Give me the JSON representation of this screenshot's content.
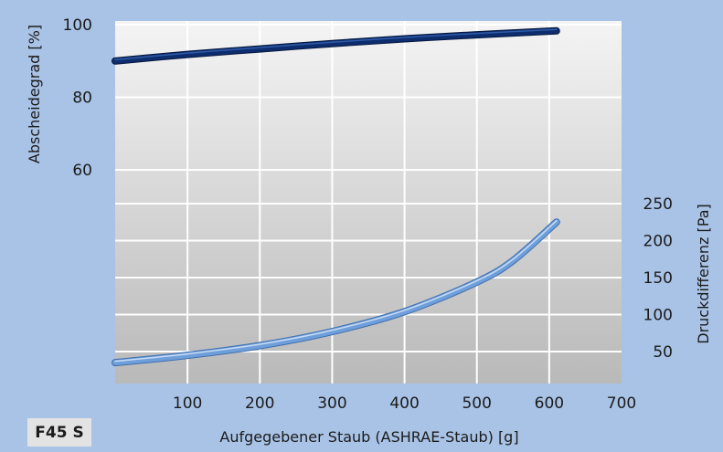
{
  "badge": "F45 S",
  "chart_data": {
    "type": "line",
    "xlabel": "Aufgegebener Staub (ASHRAE-Staub) [g]",
    "ylabel_left": "Abscheidegrad [%]",
    "ylabel_right": "Druckdifferenz [Pa]",
    "x_ticks": [
      100,
      200,
      300,
      400,
      500,
      600,
      700
    ],
    "left_ticks": [
      60,
      80,
      100
    ],
    "right_ticks": [
      50,
      100,
      150,
      200,
      250
    ],
    "xlim": [
      0,
      700
    ],
    "ylim_left": [
      40,
      100
    ],
    "ylim_right": [
      0,
      250
    ],
    "grid": true,
    "series": [
      {
        "axis": "left",
        "color": "#0d2d6e",
        "x": [
          0,
          100,
          200,
          300,
          400,
          500,
          610
        ],
        "y": [
          90,
          91.8,
          93.3,
          94.8,
          96.1,
          97.2,
          98.3
        ]
      },
      {
        "axis": "right",
        "color": "#6f9fdb",
        "x": [
          0,
          100,
          200,
          300,
          400,
          500,
          550,
          610
        ],
        "y": [
          35,
          45,
          58,
          77,
          104,
          144,
          173,
          225
        ]
      }
    ]
  }
}
